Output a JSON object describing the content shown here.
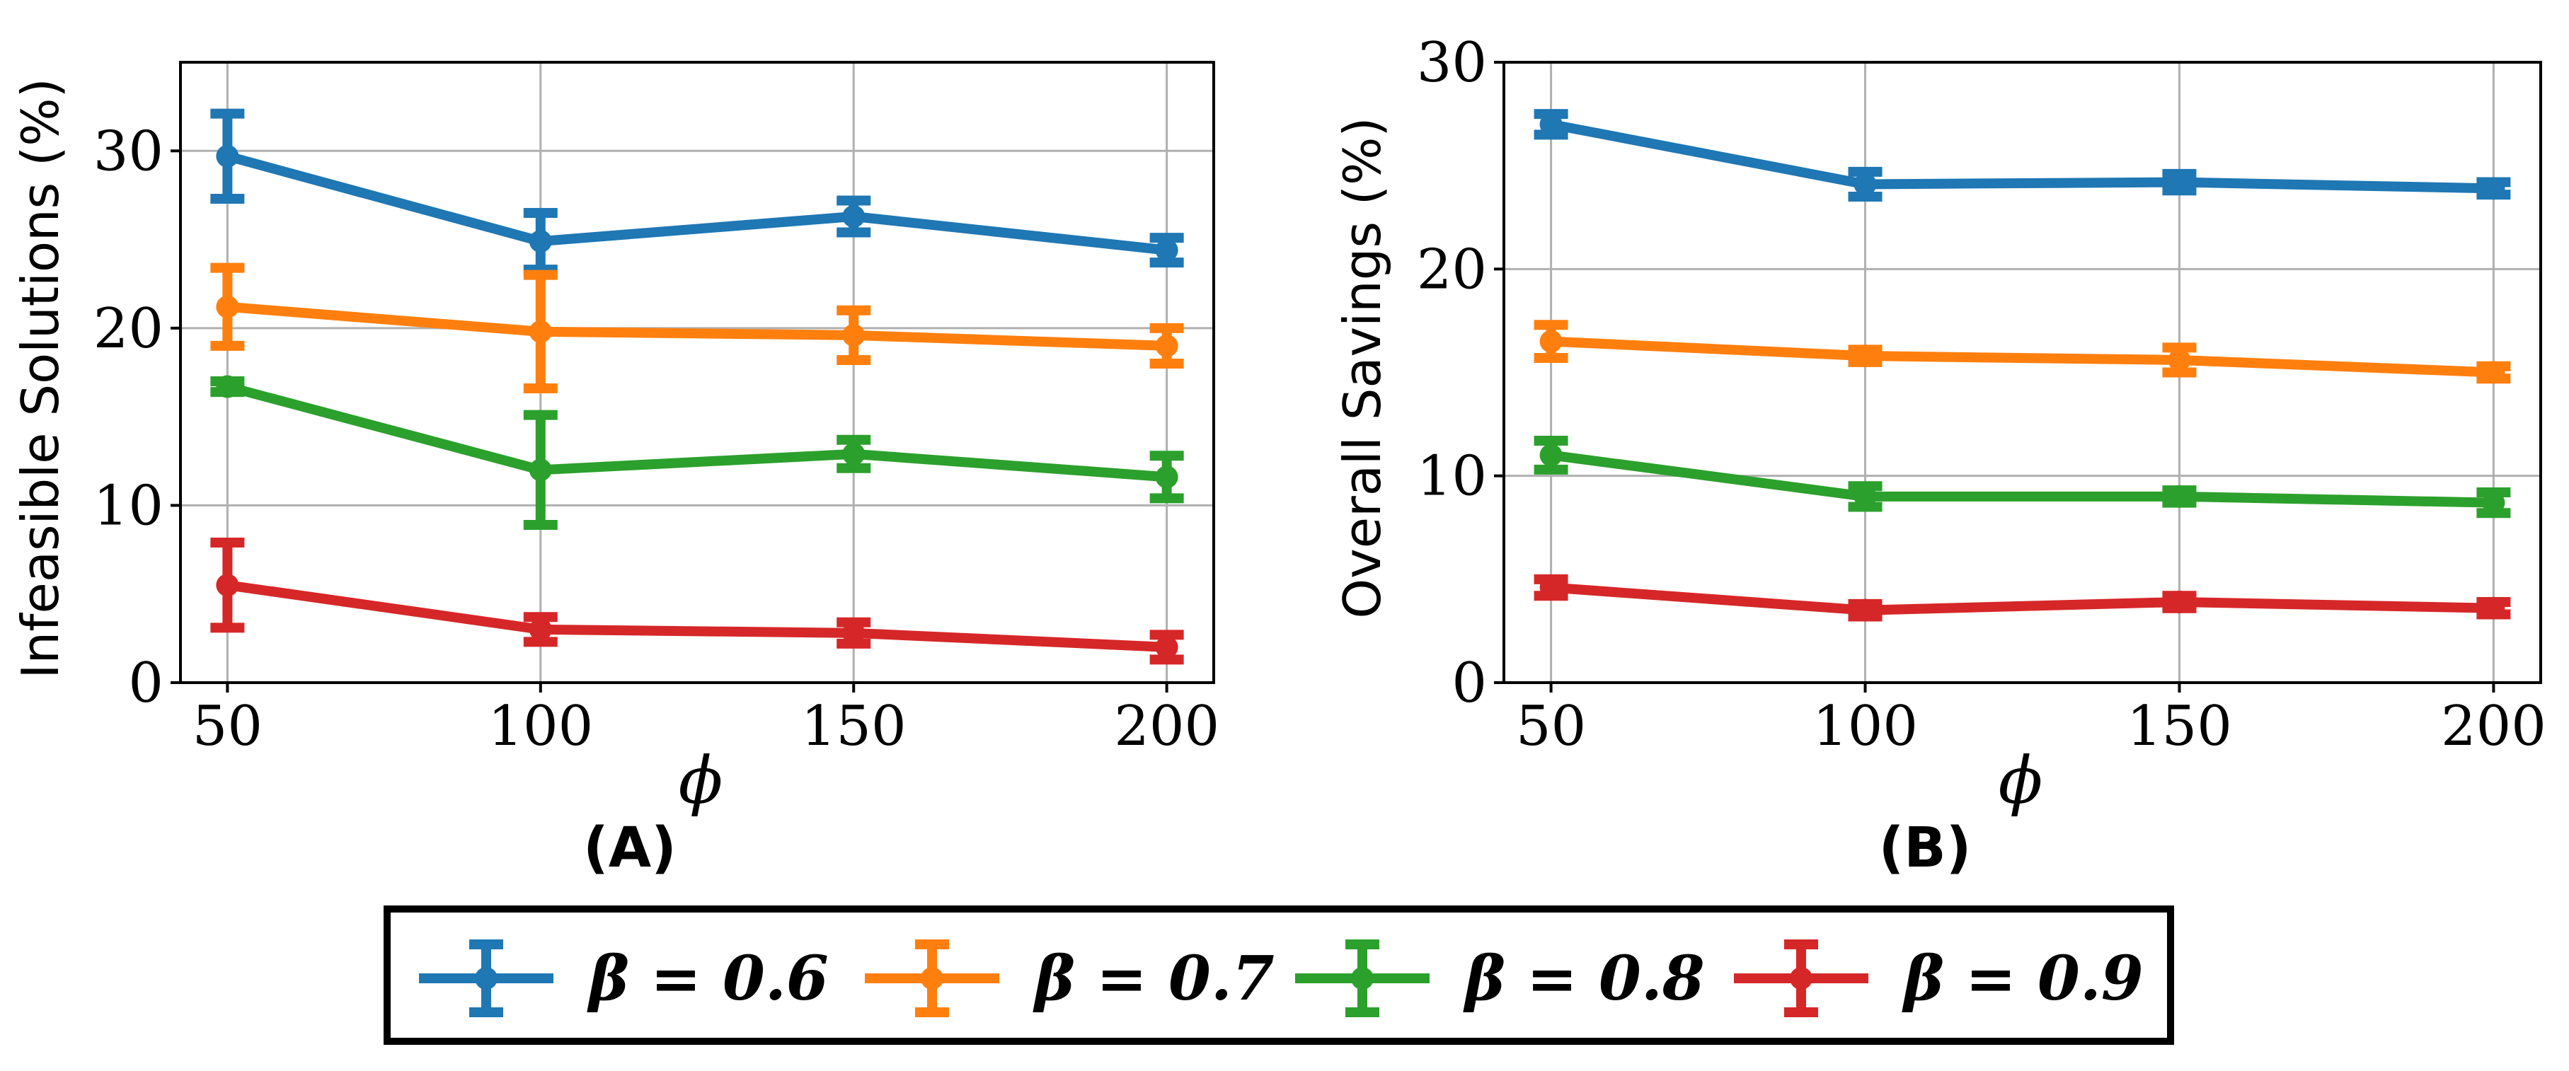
{
  "chart_data": [
    {
      "type": "line",
      "panel_label": "(A)",
      "xlabel": "ϕ",
      "ylabel": "Infeasible Solutions (%)",
      "x": [
        50,
        100,
        150,
        200
      ],
      "xlim": [
        42.5,
        207.5
      ],
      "ylim": [
        0,
        35
      ],
      "xticks": [
        50,
        100,
        150,
        200
      ],
      "yticks": [
        0,
        10,
        20,
        30
      ],
      "grid": true,
      "series": [
        {
          "name": "β = 0.6",
          "color": "#1f77b4",
          "values": [
            29.7,
            24.9,
            26.3,
            24.4
          ],
          "errors": [
            2.4,
            1.6,
            0.9,
            0.7
          ]
        },
        {
          "name": "β = 0.7",
          "color": "#ff7f0e",
          "values": [
            21.2,
            19.8,
            19.6,
            19.0
          ],
          "errors": [
            2.2,
            3.2,
            1.4,
            1.0
          ]
        },
        {
          "name": "β = 0.8",
          "color": "#2ca02c",
          "values": [
            16.7,
            12.0,
            12.9,
            11.6
          ],
          "errors": [
            0.3,
            3.1,
            0.8,
            1.2
          ]
        },
        {
          "name": "β = 0.9",
          "color": "#d62728",
          "values": [
            5.5,
            3.0,
            2.8,
            2.0
          ],
          "errors": [
            2.4,
            0.7,
            0.6,
            0.7
          ]
        }
      ]
    },
    {
      "type": "line",
      "panel_label": "(B)",
      "xlabel": "ϕ",
      "ylabel": "Overall Savings (%)",
      "x": [
        50,
        100,
        150,
        200
      ],
      "xlim": [
        42.5,
        207.5
      ],
      "ylim": [
        0,
        30
      ],
      "xticks": [
        50,
        100,
        150,
        200
      ],
      "yticks": [
        0,
        10,
        20,
        30
      ],
      "grid": true,
      "series": [
        {
          "name": "β = 0.6",
          "color": "#1f77b4",
          "values": [
            27.0,
            24.1,
            24.2,
            23.9
          ],
          "errors": [
            0.5,
            0.6,
            0.4,
            0.3
          ]
        },
        {
          "name": "β = 0.7",
          "color": "#ff7f0e",
          "values": [
            16.5,
            15.8,
            15.6,
            15.0
          ],
          "errors": [
            0.8,
            0.3,
            0.6,
            0.3
          ]
        },
        {
          "name": "β = 0.8",
          "color": "#2ca02c",
          "values": [
            11.0,
            9.0,
            9.0,
            8.7
          ],
          "errors": [
            0.7,
            0.5,
            0.3,
            0.5
          ]
        },
        {
          "name": "β = 0.9",
          "color": "#d62728",
          "values": [
            4.6,
            3.5,
            3.9,
            3.6
          ],
          "errors": [
            0.4,
            0.3,
            0.3,
            0.3
          ]
        }
      ]
    }
  ],
  "legend": {
    "location": "bottom-center",
    "entries": [
      "β = 0.6",
      "β = 0.7",
      "β = 0.8",
      "β = 0.9"
    ],
    "colors": [
      "#1f77b4",
      "#ff7f0e",
      "#2ca02c",
      "#d62728"
    ]
  }
}
